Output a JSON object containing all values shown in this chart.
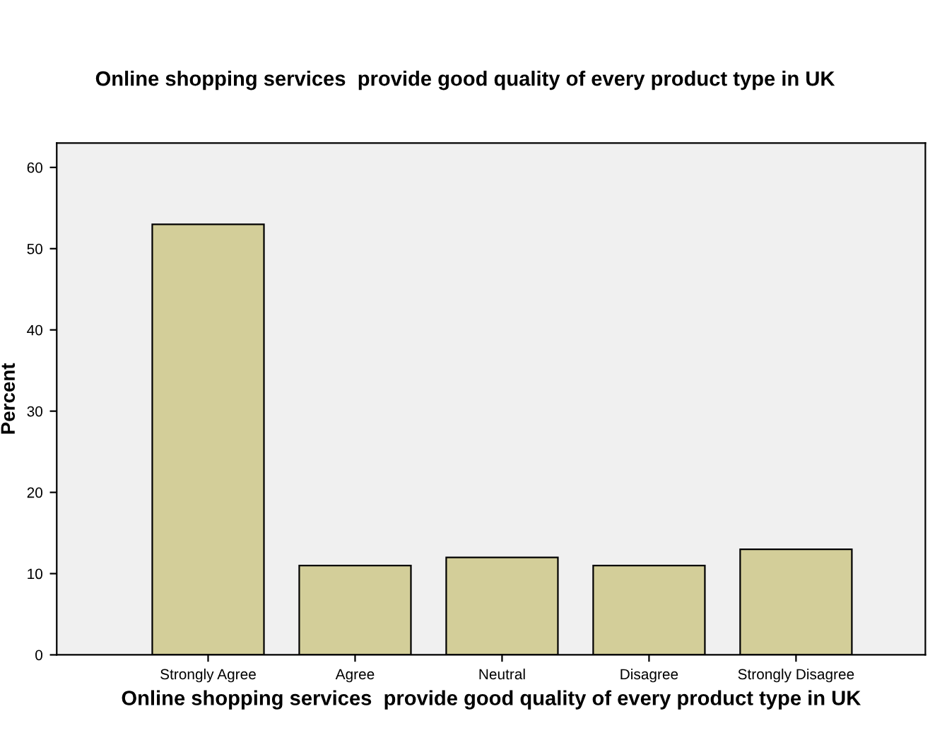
{
  "chart_data": {
    "type": "bar",
    "title": "Online shopping services  provide good quality of every product type in UK",
    "xlabel": "Online shopping services  provide good quality of every product type in UK",
    "ylabel": "Percent",
    "categories": [
      "Strongly Agree",
      "Agree",
      "Neutral",
      "Disagree",
      "Strongly Disagree"
    ],
    "values": [
      53,
      11,
      12,
      11,
      13
    ],
    "color": "#d3ce99",
    "ylim": [
      0,
      63
    ],
    "yticks": [
      0,
      10,
      20,
      30,
      40,
      50,
      60
    ],
    "grid": false,
    "legend": false
  }
}
